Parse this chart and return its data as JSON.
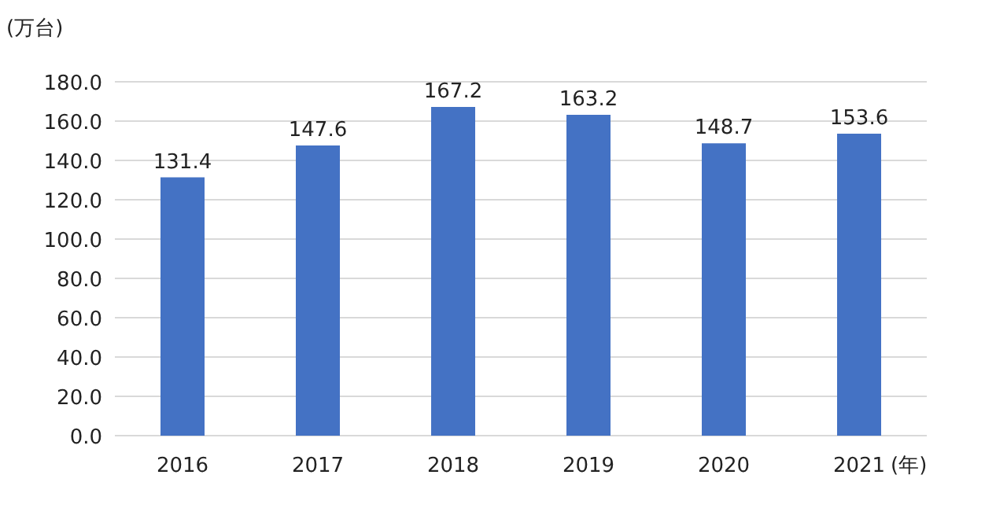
{
  "chart_data": {
    "type": "bar",
    "ylabel": "(万台)",
    "xlabel": "(年)",
    "categories": [
      "2016",
      "2017",
      "2018",
      "2019",
      "2020",
      "2021"
    ],
    "values": [
      131.4,
      147.6,
      167.2,
      163.2,
      148.7,
      153.6
    ],
    "color": "#4472c4",
    "data_labels": true,
    "grid": "y",
    "ylim": [
      0,
      180
    ],
    "yticks": [
      {
        "value": 0,
        "label": "0.0"
      },
      {
        "value": 20,
        "label": "20.0"
      },
      {
        "value": 40,
        "label": "40.0"
      },
      {
        "value": 60,
        "label": "60.0"
      },
      {
        "value": 80,
        "label": "80.0"
      },
      {
        "value": 100,
        "label": "100.0"
      },
      {
        "value": 120,
        "label": "120.0"
      },
      {
        "value": 140,
        "label": "140.0"
      },
      {
        "value": 160,
        "label": "160.0"
      },
      {
        "value": 180,
        "label": "180.0"
      }
    ]
  }
}
